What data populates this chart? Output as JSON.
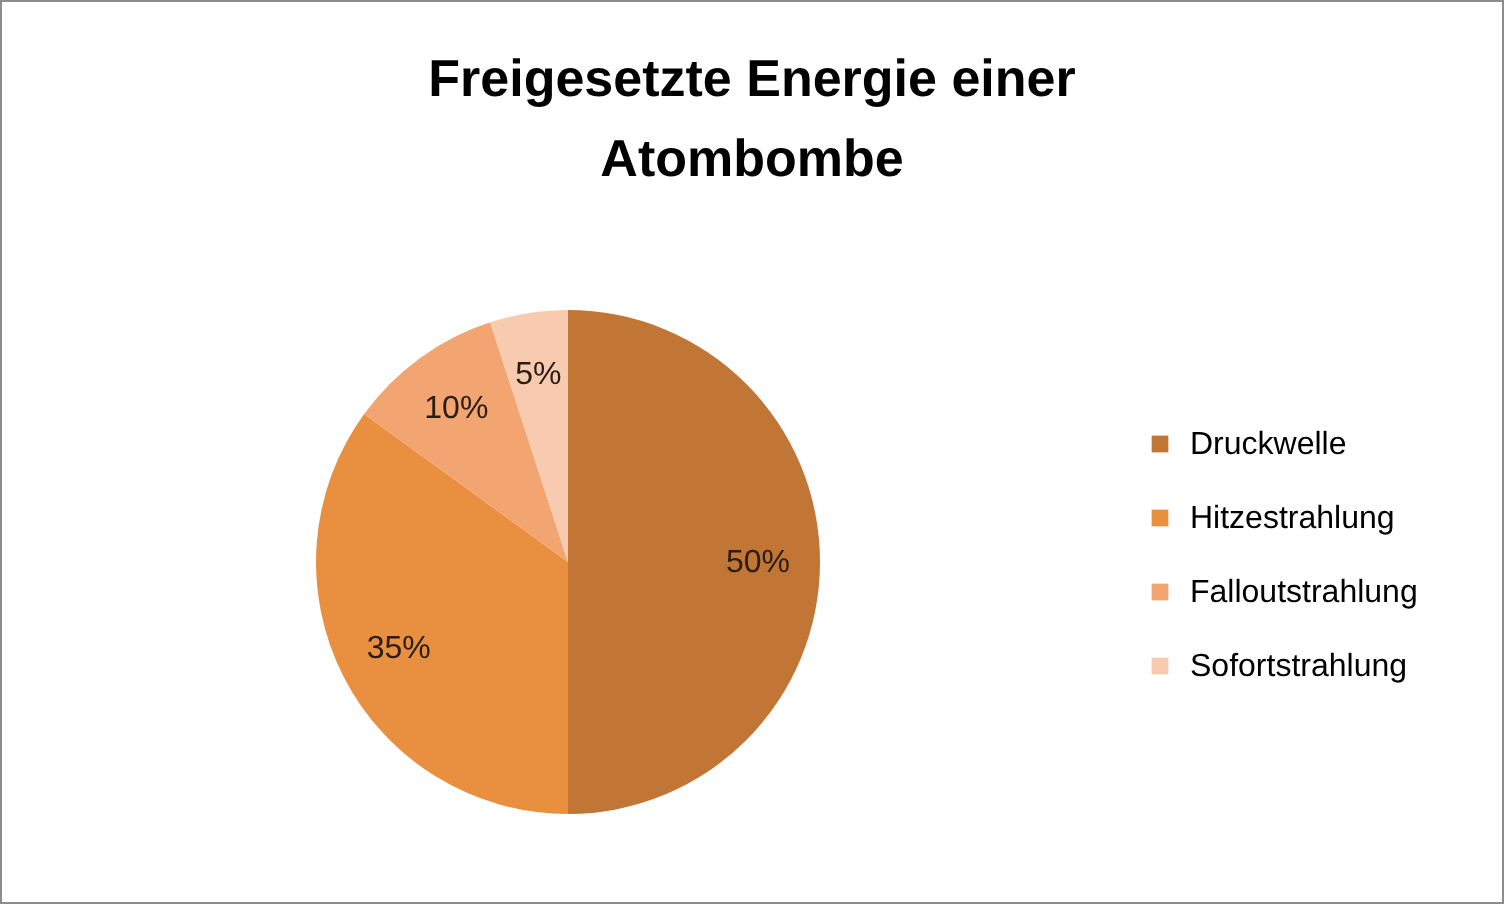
{
  "chart_data": {
    "type": "pie",
    "title": "Freigesetzte Energie einer Atombombe",
    "categories": [
      "Druckwelle",
      "Hitzestrahlung",
      "Falloutstrahlung",
      "Sofortstrahlung"
    ],
    "values": [
      50,
      35,
      10,
      5
    ],
    "value_labels": [
      "50%",
      "35%",
      "10%",
      "5%"
    ],
    "colors": [
      "#c27636",
      "#e8903f",
      "#f2a571",
      "#f8cbb0"
    ],
    "legend": "right"
  }
}
